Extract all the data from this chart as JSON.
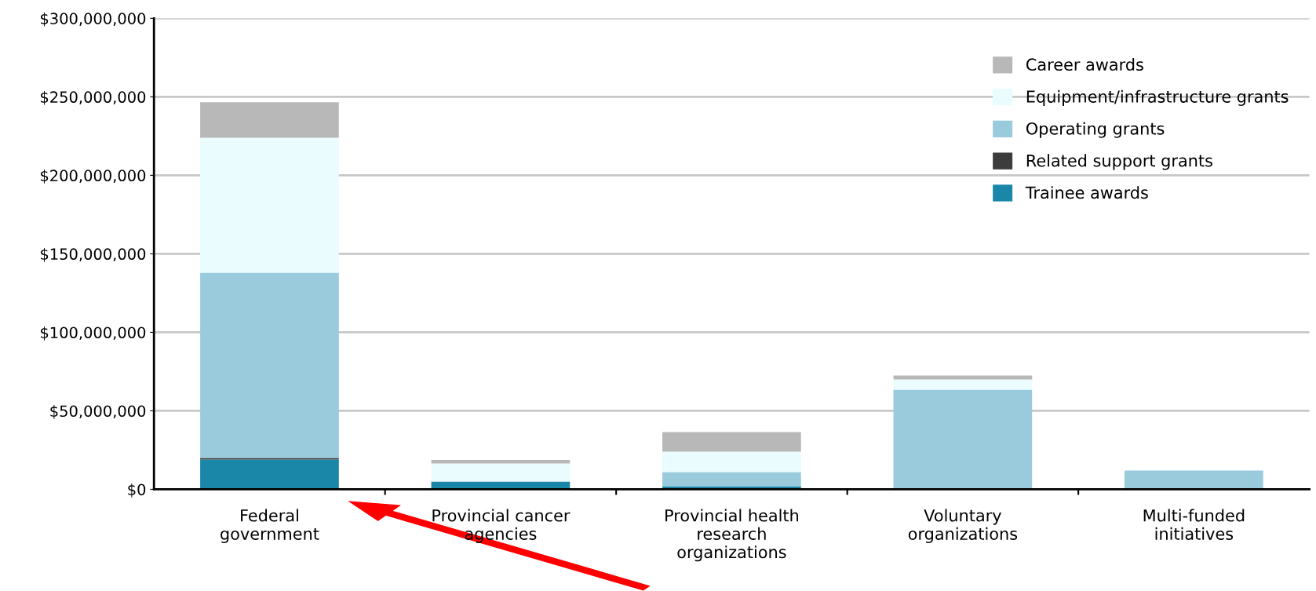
{
  "chart_data": {
    "type": "bar",
    "stacked": true,
    "categories": [
      "Federal\ngovernment",
      "Provincial cancer\nagencies",
      "Provincial health\nresearch\norganizations",
      "Voluntary\norganizations",
      "Multi-funded\ninitiatives"
    ],
    "series": [
      {
        "name": "Trainee awards",
        "color": "#1a87a8",
        "values": [
          19000000,
          5000000,
          2000000,
          0,
          0
        ]
      },
      {
        "name": "Related support grants",
        "color": "#3c3c3c",
        "values": [
          1000000,
          0,
          0,
          0,
          0
        ]
      },
      {
        "name": "Operating grants",
        "color": "#99cbdd",
        "values": [
          118000000,
          0,
          9000000,
          63500000,
          12000000
        ]
      },
      {
        "name": "Equipment/infrastructure grants",
        "color": "#eafcfd",
        "values": [
          86000000,
          11500000,
          13000000,
          6500000,
          0
        ]
      },
      {
        "name": "Career awards",
        "color": "#b8b8b8",
        "values": [
          22500000,
          2200000,
          12500000,
          2500000,
          0
        ]
      }
    ],
    "ylim": [
      0,
      300000000
    ],
    "yticks": [
      {
        "value": 0,
        "label": "$0"
      },
      {
        "value": 50000000,
        "label": "$50,000,000"
      },
      {
        "value": 100000000,
        "label": "$100,000,000"
      },
      {
        "value": 150000000,
        "label": "$150,000,000"
      },
      {
        "value": 200000000,
        "label": "$200,000,000"
      },
      {
        "value": 250000000,
        "label": "$250,000,000"
      },
      {
        "value": 300000000,
        "label": "$300,000,000"
      }
    ],
    "grid": "y",
    "legend": "top right"
  }
}
